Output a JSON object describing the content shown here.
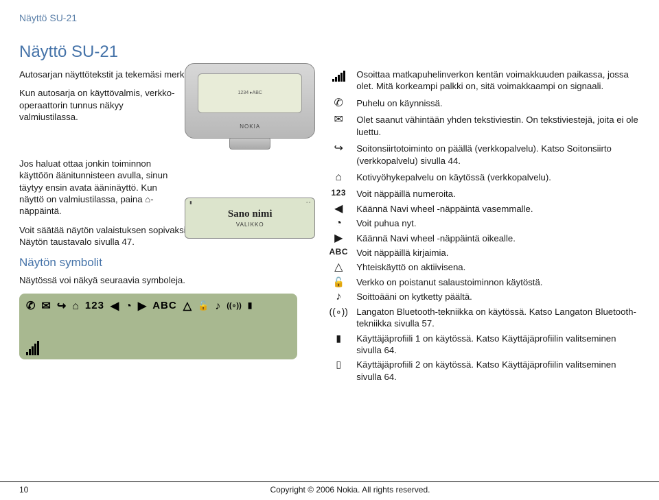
{
  "header_link": "Näyttö SU-21",
  "title": "Näyttö SU-21",
  "left": {
    "p1": "Autosarjan näyttötekstit ja tekemäsi merkinnät näkyvät näytössä.",
    "p2": "Kun autosarja on käyttövalmis, verkko-operaattorin tunnus näkyy valmiustilassa.",
    "p3": "Jos haluat ottaa jonkin toiminnon käyttöön äänitunnisteen avulla, sinun täytyy ensin avata ääninäyttö. Kun näyttö on valmiustilassa, paina ⌂-näppäintä.",
    "p4": "Voit säätää näytön valaistuksen sopivaksi. Lisätietoja on kohdassa Näytön taustavalo sivulla 47.",
    "subhead": "Näytön symbolit",
    "p5": "Näytössä voi näkyä seuraavia symboleja.",
    "device_text": "1234 ▸ABC",
    "device_brand": "NOKIA",
    "sano_line1": "Sano nimi",
    "sano_line2": "VALIKKO",
    "strip_text_123": "123",
    "strip_text_abc": "ABC"
  },
  "right": {
    "rows": [
      {
        "icon_type": "signal",
        "text": "Osoittaa matkapuhelinverkon kentän voimakkuuden paikassa, jossa olet. Mitä korkeampi palkki on, sitä voimakkaampi on signaali."
      },
      {
        "icon": "✆",
        "text": "Puhelu on käynnissä."
      },
      {
        "icon": "✉",
        "text": "Olet saanut vähintään yhden tekstiviestin. On tekstiviestejä, joita ei ole luettu."
      },
      {
        "icon": "↪",
        "text": "Soitonsiirtotoiminto on päällä (verkkopalvelu). Katso Soitonsiirto (verkkopalvelu) sivulla 44."
      },
      {
        "icon": "⌂",
        "text": "Kotivyöhykepalvelu on käytössä (verkkopalvelu)."
      },
      {
        "icon_txt": "123",
        "text": "Voit näppäillä numeroita."
      },
      {
        "icon": "◀",
        "text": "Käännä Navi wheel -näppäintä vasemmalle."
      },
      {
        "icon": "◔",
        "text": "Voit puhua nyt."
      },
      {
        "icon": "▶",
        "text": "Käännä Navi wheel -näppäintä oikealle."
      },
      {
        "icon_txt": "ABC",
        "text": "Voit näppäillä kirjaimia."
      },
      {
        "icon": "△",
        "text": "Yhteiskäyttö on aktiivisena."
      },
      {
        "icon": "🔓",
        "cls": "small",
        "text": "Verkko on poistanut salaustoiminnon käytöstä."
      },
      {
        "icon": "♪",
        "text": "Soittoääni on kytketty päältä."
      },
      {
        "icon": "((∘))",
        "cls": "small",
        "text": "Langaton Bluetooth-tekniikka on käytössä. Katso Langaton Bluetooth-tekniikka sivulla 57."
      },
      {
        "icon": "▮",
        "cls": "small",
        "text": "Käyttäjäprofiili 1 on käytössä. Katso Käyttäjäprofiilin valitseminen sivulla 64."
      },
      {
        "icon": "▯",
        "cls": "small",
        "text": "Käyttäjäprofiili 2 on käytössä. Katso Käyttäjäprofiilin valitseminen sivulla 64."
      }
    ]
  },
  "footer": {
    "page": "10",
    "copyright": "Copyright © 2006 Nokia. All rights reserved."
  },
  "colors": {
    "link": "#5a7fa8",
    "heading": "#4472a8",
    "strip_bg": "#a8b890",
    "sano_bg": "#dce4cc"
  }
}
